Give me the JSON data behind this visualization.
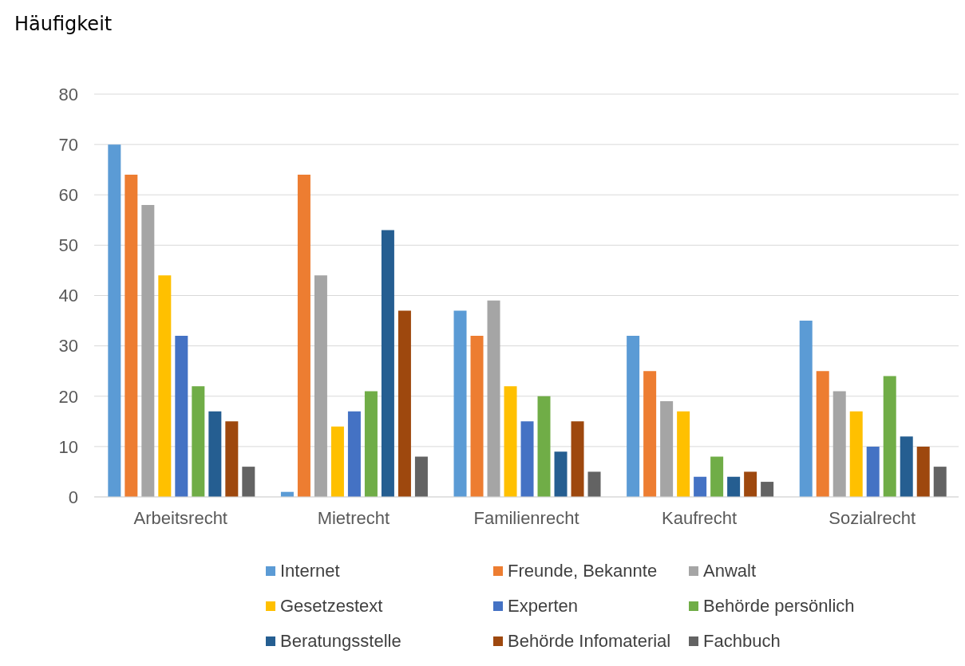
{
  "chart_data": {
    "type": "bar",
    "ylabel": "Häufigkeit",
    "categories": [
      "Arbeitsrecht",
      "Mietrecht",
      "Familienrecht",
      "Kaufrecht",
      "Sozialrecht"
    ],
    "series": [
      {
        "name": "Internet",
        "color": "#5b9bd5",
        "values": [
          70,
          1,
          37,
          32,
          35
        ]
      },
      {
        "name": "Freunde, Bekannte",
        "color": "#ed7d31",
        "values": [
          64,
          64,
          32,
          25,
          25
        ]
      },
      {
        "name": "Anwalt",
        "color": "#a5a5a5",
        "values": [
          58,
          44,
          39,
          19,
          21
        ]
      },
      {
        "name": "Gesetzestext",
        "color": "#ffc000",
        "values": [
          44,
          14,
          22,
          17,
          17
        ]
      },
      {
        "name": "Experten",
        "color": "#4472c4",
        "values": [
          32,
          17,
          15,
          4,
          10
        ]
      },
      {
        "name": "Behörde persönlich",
        "color": "#70ad47",
        "values": [
          22,
          21,
          20,
          8,
          24
        ]
      },
      {
        "name": "Beratungsstelle",
        "color": "#255e91",
        "values": [
          17,
          53,
          9,
          4,
          12
        ]
      },
      {
        "name": "Behörde Infomaterial",
        "color": "#9e480e",
        "values": [
          15,
          37,
          15,
          5,
          10
        ]
      },
      {
        "name": "Fachbuch",
        "color": "#636363",
        "values": [
          6,
          8,
          5,
          3,
          6
        ]
      }
    ],
    "ylim": [
      0,
      80
    ],
    "yticks": [
      0,
      10,
      20,
      30,
      40,
      50,
      60,
      70,
      80
    ],
    "grid": "y",
    "legend": "bottom"
  }
}
